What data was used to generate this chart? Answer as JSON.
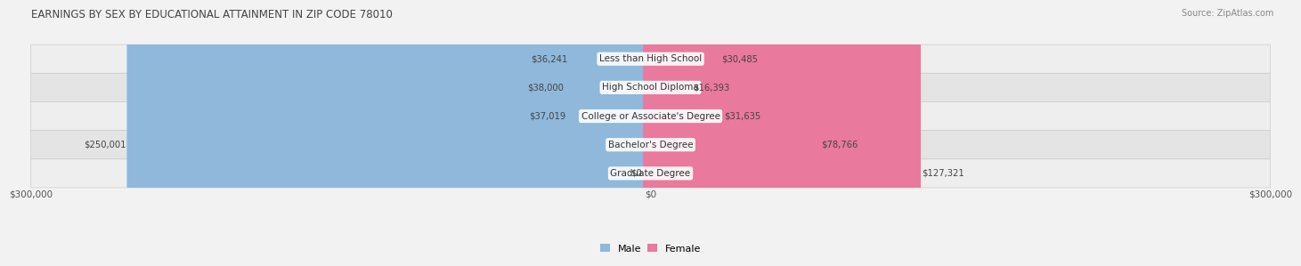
{
  "title": "EARNINGS BY SEX BY EDUCATIONAL ATTAINMENT IN ZIP CODE 78010",
  "source": "Source: ZipAtlas.com",
  "categories": [
    "Less than High School",
    "High School Diploma",
    "College or Associate's Degree",
    "Bachelor's Degree",
    "Graduate Degree"
  ],
  "male_values": [
    36241,
    38000,
    37019,
    250001,
    0
  ],
  "female_values": [
    30485,
    16393,
    31635,
    78766,
    127321
  ],
  "male_color": "#8fb8db",
  "female_color": "#e9799d",
  "axis_max": 300000,
  "bar_height": 0.58,
  "label_fontsize": 7.5,
  "title_fontsize": 8.5,
  "value_fontsize": 7.2,
  "source_fontsize": 7.0,
  "legend_fontsize": 8.0,
  "row_colors": [
    "#ebebeb",
    "#f5f5f5",
    "#ebebeb",
    "#dfe8f0",
    "#e8e8e8"
  ],
  "row_border_color": "#cccccc"
}
